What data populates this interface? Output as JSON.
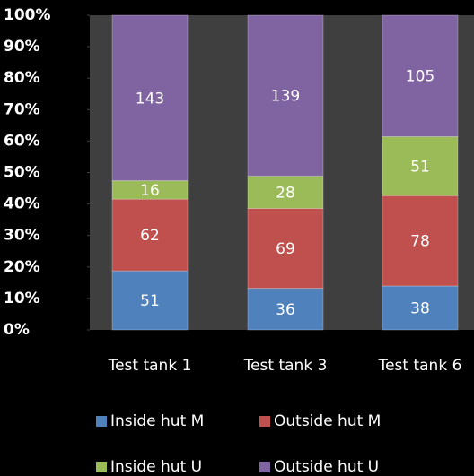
{
  "chart_data": {
    "type": "bar",
    "stacking": "percent",
    "categories": [
      "Test tank 1",
      "Test tank 3",
      "Test tank 6"
    ],
    "series": [
      {
        "name": "Inside hut M",
        "color": "#4f81bd",
        "values": [
          51,
          36,
          38
        ]
      },
      {
        "name": "Outside hut M",
        "color": "#c0504d",
        "values": [
          62,
          69,
          78
        ]
      },
      {
        "name": "Inside hut U",
        "color": "#9bbb59",
        "values": [
          16,
          28,
          51
        ]
      },
      {
        "name": "Outside hut U",
        "color": "#8064a2",
        "values": [
          143,
          139,
          105
        ]
      }
    ],
    "ylim": [
      0,
      100
    ],
    "yticks": [
      {
        "value": 0,
        "label": "0%"
      },
      {
        "value": 10,
        "label": "10%"
      },
      {
        "value": 20,
        "label": "20%"
      },
      {
        "value": 30,
        "label": "30%"
      },
      {
        "value": 40,
        "label": "40%"
      },
      {
        "value": 50,
        "label": "50%"
      },
      {
        "value": 60,
        "label": "60%"
      },
      {
        "value": 70,
        "label": "70%"
      },
      {
        "value": 80,
        "label": "80%"
      },
      {
        "value": 90,
        "label": "90%"
      },
      {
        "value": 100,
        "label": "100%"
      }
    ],
    "grid": false,
    "legend": "bottom"
  }
}
